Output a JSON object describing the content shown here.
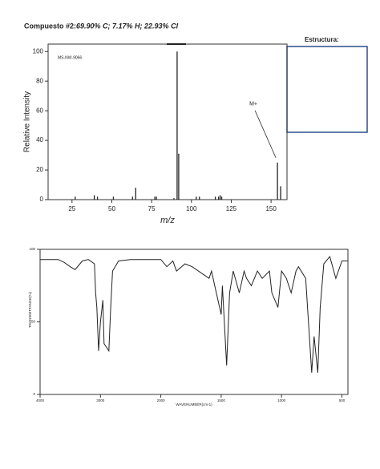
{
  "header": {
    "compound": "Compuesto #2:",
    "composition": "69.90% C;  7.17% H;  22.93% Cl",
    "structure_label": "Estructura:"
  },
  "chart_data": [
    {
      "type": "bar",
      "annotation": "MS-NW-9066",
      "marker_label": "M+",
      "x_label": "m/z",
      "y_label": "Relative Intensity",
      "x": [
        27,
        39,
        41,
        51,
        63,
        65,
        77,
        78,
        89,
        91,
        92,
        103,
        105,
        115,
        117,
        118,
        119,
        154,
        156
      ],
      "values": [
        2,
        3,
        2,
        2,
        2,
        8,
        2,
        2,
        1,
        100,
        31,
        2,
        2,
        2,
        2,
        3,
        2,
        25,
        9
      ],
      "color": "#222",
      "xlim": [
        10,
        160
      ],
      "xticks": [
        25,
        50,
        75,
        100,
        125,
        150
      ],
      "ylim": [
        0,
        105
      ],
      "yticks": [
        0,
        20,
        40,
        60,
        80,
        100
      ]
    },
    {
      "type": "line",
      "x_label": "WAVENUMBER(cm-1)",
      "y_label": "TRANSMITTANCE(%)",
      "x": [
        4000,
        3700,
        3600,
        3500,
        3420,
        3300,
        3200,
        3100,
        3080,
        3060,
        3030,
        3000,
        2960,
        2940,
        2860,
        2830,
        2800,
        2700,
        2500,
        2000,
        1950,
        1900,
        1870,
        1800,
        1740,
        1600,
        1580,
        1500,
        1490,
        1455,
        1430,
        1400,
        1350,
        1310,
        1290,
        1250,
        1200,
        1160,
        1100,
        1080,
        1030,
        1000,
        960,
        920,
        880,
        860,
        800,
        750,
        730,
        700,
        680,
        650,
        600,
        550,
        500,
        450
      ],
      "values": [
        93,
        93,
        91,
        88,
        86,
        92,
        93,
        90,
        70,
        60,
        30,
        50,
        65,
        35,
        30,
        60,
        85,
        92,
        93,
        93,
        88,
        92,
        85,
        90,
        88,
        80,
        85,
        55,
        75,
        20,
        70,
        85,
        70,
        85,
        80,
        75,
        85,
        80,
        85,
        70,
        60,
        85,
        80,
        70,
        85,
        88,
        80,
        15,
        40,
        15,
        60,
        90,
        95,
        80,
        92,
        92
      ],
      "color": "#222",
      "scale_break": 2000,
      "xlim": [
        4000,
        450
      ],
      "xticks": [
        4000,
        3000,
        2000,
        1500,
        1000,
        500
      ],
      "ylim": [
        0,
        100
      ],
      "yticks": [
        0,
        50,
        100
      ]
    }
  ]
}
